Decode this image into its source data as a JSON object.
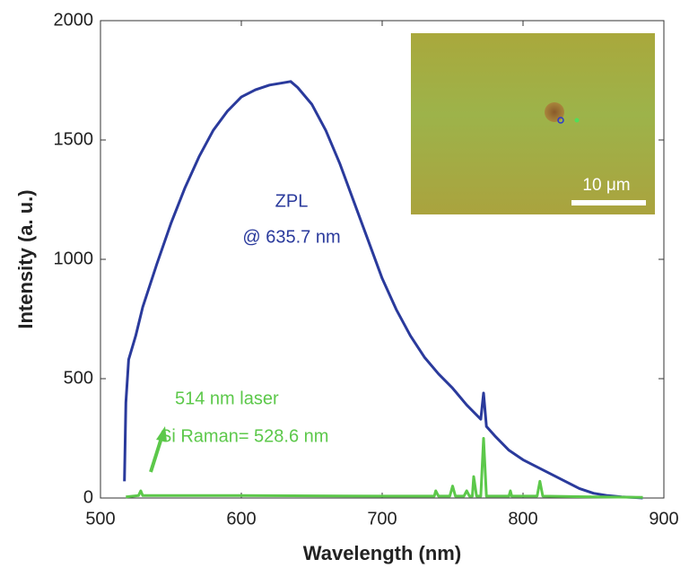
{
  "chart_data": {
    "type": "line",
    "x_label": "Wavelength (nm)",
    "y_label": "Intensity (a. u.)",
    "xlim": [
      500,
      900
    ],
    "xticks": [
      500,
      600,
      700,
      800,
      900
    ],
    "ylim": [
      0,
      2000
    ],
    "yticks": [
      0,
      500,
      1000,
      1500,
      2000
    ],
    "series": [
      {
        "color": "#2a3a9c",
        "x": [
          517,
          518,
          520,
          525,
          530,
          540,
          550,
          560,
          570,
          580,
          590,
          600,
          610,
          620,
          630,
          635,
          640,
          650,
          660,
          670,
          680,
          690,
          700,
          710,
          720,
          730,
          740,
          750,
          760,
          770,
          772,
          774,
          780,
          790,
          800,
          810,
          820,
          830,
          840,
          850,
          860,
          870,
          880,
          885
        ],
        "values": [
          70,
          400,
          580,
          680,
          800,
          980,
          1150,
          1300,
          1430,
          1540,
          1620,
          1680,
          1710,
          1730,
          1740,
          1745,
          1720,
          1650,
          1540,
          1400,
          1240,
          1080,
          920,
          790,
          680,
          590,
          520,
          460,
          390,
          330,
          440,
          300,
          260,
          200,
          160,
          130,
          100,
          70,
          40,
          20,
          10,
          5,
          2,
          0
        ]
      },
      {
        "color": "#5cc84a",
        "x": [
          518,
          527,
          528.6,
          530,
          600,
          700,
          737,
          738,
          740,
          748,
          750,
          752,
          758,
          760,
          762,
          764,
          765,
          767,
          770,
          772,
          774,
          790,
          791,
          792,
          810,
          812,
          814,
          850,
          885
        ],
        "values": [
          5,
          10,
          30,
          10,
          10,
          8,
          8,
          30,
          8,
          8,
          50,
          8,
          8,
          30,
          8,
          8,
          90,
          8,
          8,
          250,
          8,
          8,
          30,
          8,
          8,
          70,
          8,
          5,
          3
        ]
      }
    ],
    "annotations": [
      {
        "text": "ZPL",
        "color": "#2a3a9c"
      },
      {
        "text": "@ 635.7 nm",
        "color": "#2a3a9c"
      },
      {
        "text": "514 nm laser",
        "color": "#5cc84a"
      },
      {
        "text": "Si Raman= 528.6 nm",
        "color": "#5cc84a"
      }
    ],
    "inset_scale_label": "10 μm"
  }
}
